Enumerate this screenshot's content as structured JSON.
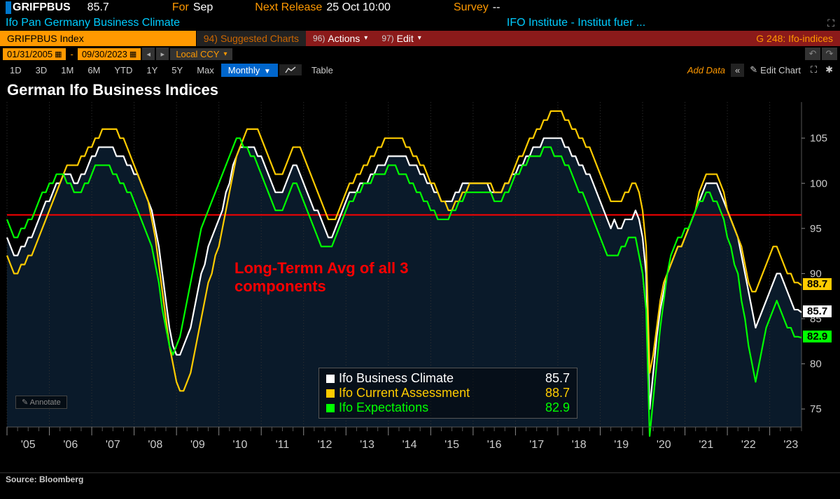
{
  "header": {
    "ticker": "GRIFPBUS",
    "ticker_value": "85.7",
    "for_label": "For",
    "for_value": "Sep",
    "next_release_label": "Next Release",
    "next_release_value": "25 Oct 10:00",
    "survey_label": "Survey",
    "survey_value": "--",
    "subtitle_left": "Ifo Pan Germany Business Climate",
    "subtitle_right": "IFO Institute - Institut fuer ..."
  },
  "toolbar": {
    "index_label": "GRIFPBUS Index",
    "suggested_num": "94)",
    "suggested_label": "Suggested Charts",
    "actions_num": "96)",
    "actions_label": "Actions",
    "edit_num": "97)",
    "edit_label": "Edit",
    "right_label": "G 248: Ifo-indices"
  },
  "dates": {
    "start": "01/31/2005",
    "end": "09/30/2023",
    "ccy": "Local CCY"
  },
  "ranges": {
    "items": [
      "1D",
      "3D",
      "1M",
      "6M",
      "YTD",
      "1Y",
      "5Y",
      "Max"
    ],
    "period": "Monthly",
    "table": "Table",
    "add_data": "Add Data",
    "edit_chart": "Edit Chart"
  },
  "chart": {
    "title": "German Ifo Business Indices",
    "type": "line",
    "background_color": "#000000",
    "plot_background": "#0a1a2a",
    "grid_color": "#333333",
    "avg_line_color": "#ff0000",
    "avg_line_y": 96.5,
    "axes_color": "#cccccc",
    "ylim": [
      73,
      109
    ],
    "yticks": [
      75,
      80,
      85,
      90,
      95,
      100,
      105
    ],
    "xlabels": [
      "'05",
      "'06",
      "'07",
      "'08",
      "'09",
      "'10",
      "'11",
      "'12",
      "'13",
      "'14",
      "'15",
      "'16",
      "'17",
      "'18",
      "'19",
      "'20",
      "'21",
      "'22",
      "'23"
    ],
    "xlabels_per_major": 12,
    "annotation": "Long-Termn Avg of all 3 components",
    "annotation_color": "#ff0000",
    "annotate_btn": "Annotate",
    "series": [
      {
        "name": "Ifo Business Climate",
        "color": "#ffffff",
        "last_value": "85.7",
        "tag_bg": "#ffffff",
        "data": [
          94,
          93,
          92,
          92,
          93,
          93,
          94,
          94,
          95,
          96,
          97,
          98,
          98,
          99,
          100,
          100,
          101,
          101,
          101,
          100,
          100,
          101,
          101,
          102,
          103,
          103,
          104,
          104,
          104,
          104,
          104,
          103,
          103,
          103,
          102,
          102,
          101,
          101,
          100,
          99,
          98,
          97,
          95,
          93,
          90,
          87,
          84,
          82,
          81,
          81,
          82,
          83,
          84,
          86,
          88,
          90,
          91,
          93,
          94,
          95,
          96,
          97,
          99,
          100,
          102,
          103,
          104,
          104,
          104,
          104,
          104,
          103,
          103,
          102,
          101,
          100,
          99,
          99,
          99,
          100,
          101,
          102,
          102,
          101,
          100,
          99,
          98,
          97,
          97,
          96,
          95,
          94,
          94,
          95,
          96,
          97,
          98,
          99,
          99,
          99,
          100,
          100,
          100,
          101,
          101,
          102,
          102,
          102,
          103,
          103,
          103,
          103,
          103,
          103,
          102,
          102,
          102,
          101,
          101,
          100,
          100,
          99,
          99,
          98,
          98,
          98,
          98,
          99,
          99,
          100,
          100,
          100,
          100,
          100,
          100,
          100,
          100,
          99,
          99,
          99,
          99,
          100,
          100,
          101,
          101,
          102,
          102,
          103,
          103,
          104,
          104,
          104,
          105,
          105,
          105,
          105,
          105,
          105,
          104,
          104,
          103,
          103,
          102,
          102,
          101,
          101,
          100,
          99,
          98,
          97,
          96,
          95,
          96,
          95,
          95,
          96,
          96,
          96,
          97,
          96,
          94,
          90,
          75,
          79,
          83,
          86,
          88,
          90,
          91,
          92,
          93,
          93,
          94,
          95,
          96,
          97,
          98,
          99,
          100,
          100,
          100,
          100,
          99,
          98,
          97,
          96,
          95,
          94,
          92,
          90,
          88,
          86,
          84,
          85,
          86,
          87,
          88,
          89,
          90,
          90,
          89,
          88,
          87,
          86,
          86,
          85.7
        ]
      },
      {
        "name": "Ifo Current Assessment",
        "color": "#ffcc00",
        "last_value": "88.7",
        "tag_bg": "#ffcc00",
        "data": [
          92,
          91,
          90,
          90,
          91,
          91,
          92,
          92,
          93,
          94,
          95,
          96,
          97,
          98,
          99,
          100,
          101,
          102,
          102,
          102,
          102,
          103,
          103,
          104,
          104,
          105,
          105,
          106,
          106,
          106,
          106,
          106,
          105,
          105,
          104,
          103,
          102,
          101,
          100,
          99,
          98,
          96,
          94,
          91,
          88,
          85,
          82,
          80,
          78,
          77,
          77,
          78,
          79,
          81,
          83,
          85,
          87,
          89,
          90,
          92,
          93,
          95,
          97,
          99,
          101,
          103,
          104,
          105,
          106,
          106,
          106,
          106,
          105,
          104,
          103,
          102,
          101,
          101,
          101,
          102,
          103,
          104,
          104,
          104,
          103,
          102,
          101,
          100,
          99,
          98,
          97,
          96,
          96,
          96,
          97,
          98,
          99,
          100,
          100,
          101,
          101,
          102,
          102,
          103,
          103,
          104,
          104,
          105,
          105,
          105,
          105,
          105,
          105,
          104,
          104,
          103,
          103,
          102,
          102,
          101,
          100,
          100,
          99,
          98,
          98,
          97,
          97,
          98,
          98,
          99,
          99,
          100,
          100,
          100,
          100,
          100,
          100,
          100,
          99,
          99,
          99,
          100,
          100,
          101,
          102,
          103,
          103,
          104,
          105,
          105,
          106,
          106,
          107,
          107,
          108,
          108,
          108,
          108,
          107,
          107,
          106,
          106,
          105,
          105,
          104,
          104,
          103,
          102,
          101,
          100,
          99,
          98,
          98,
          98,
          98,
          99,
          99,
          100,
          100,
          99,
          97,
          93,
          79,
          81,
          84,
          87,
          89,
          90,
          91,
          92,
          93,
          93,
          94,
          95,
          96,
          97,
          99,
          100,
          101,
          101,
          101,
          101,
          100,
          99,
          97,
          96,
          95,
          94,
          93,
          91,
          89,
          88,
          88,
          89,
          90,
          91,
          92,
          93,
          93,
          92,
          91,
          90,
          90,
          89,
          89,
          88.7
        ]
      },
      {
        "name": "Ifo Expectations",
        "color": "#00ff00",
        "last_value": "82.9",
        "tag_bg": "#00ff00",
        "data": [
          96,
          95,
          94,
          94,
          95,
          95,
          96,
          96,
          97,
          98,
          99,
          99,
          100,
          100,
          101,
          101,
          101,
          100,
          100,
          99,
          99,
          99,
          100,
          100,
          101,
          102,
          102,
          102,
          102,
          102,
          101,
          101,
          100,
          100,
          99,
          99,
          98,
          97,
          96,
          95,
          94,
          93,
          91,
          89,
          86,
          84,
          82,
          81,
          82,
          83,
          85,
          87,
          89,
          91,
          93,
          95,
          96,
          97,
          98,
          99,
          100,
          101,
          102,
          103,
          104,
          105,
          105,
          104,
          104,
          103,
          103,
          102,
          101,
          100,
          99,
          98,
          97,
          97,
          97,
          98,
          99,
          100,
          100,
          99,
          98,
          97,
          96,
          95,
          94,
          93,
          93,
          93,
          93,
          94,
          95,
          96,
          97,
          98,
          98,
          99,
          99,
          100,
          100,
          100,
          101,
          101,
          101,
          101,
          102,
          102,
          102,
          101,
          101,
          101,
          100,
          100,
          99,
          99,
          98,
          98,
          97,
          97,
          96,
          96,
          96,
          96,
          97,
          97,
          98,
          98,
          99,
          99,
          99,
          99,
          99,
          99,
          99,
          99,
          98,
          98,
          98,
          99,
          99,
          100,
          101,
          101,
          102,
          102,
          103,
          103,
          103,
          103,
          104,
          104,
          104,
          103,
          103,
          103,
          102,
          102,
          101,
          100,
          99,
          99,
          98,
          97,
          96,
          95,
          94,
          93,
          92,
          92,
          92,
          92,
          93,
          93,
          94,
          94,
          94,
          92,
          90,
          86,
          72,
          76,
          80,
          84,
          87,
          90,
          92,
          93,
          94,
          94,
          95,
          95,
          96,
          97,
          98,
          98,
          99,
          99,
          98,
          98,
          97,
          96,
          94,
          93,
          91,
          90,
          87,
          85,
          82,
          80,
          78,
          80,
          82,
          84,
          85,
          86,
          87,
          86,
          85,
          84,
          84,
          83,
          83,
          82.9
        ]
      }
    ],
    "legend": {
      "items": [
        {
          "label": "Ifo Business Climate",
          "value": "85.7",
          "color": "#ffffff"
        },
        {
          "label": "Ifo Current Assessment",
          "value": "88.7",
          "color": "#ffcc00"
        },
        {
          "label": "Ifo Expectations",
          "value": "82.9",
          "color": "#00ff00"
        }
      ]
    }
  },
  "source": "Source: Bloomberg"
}
